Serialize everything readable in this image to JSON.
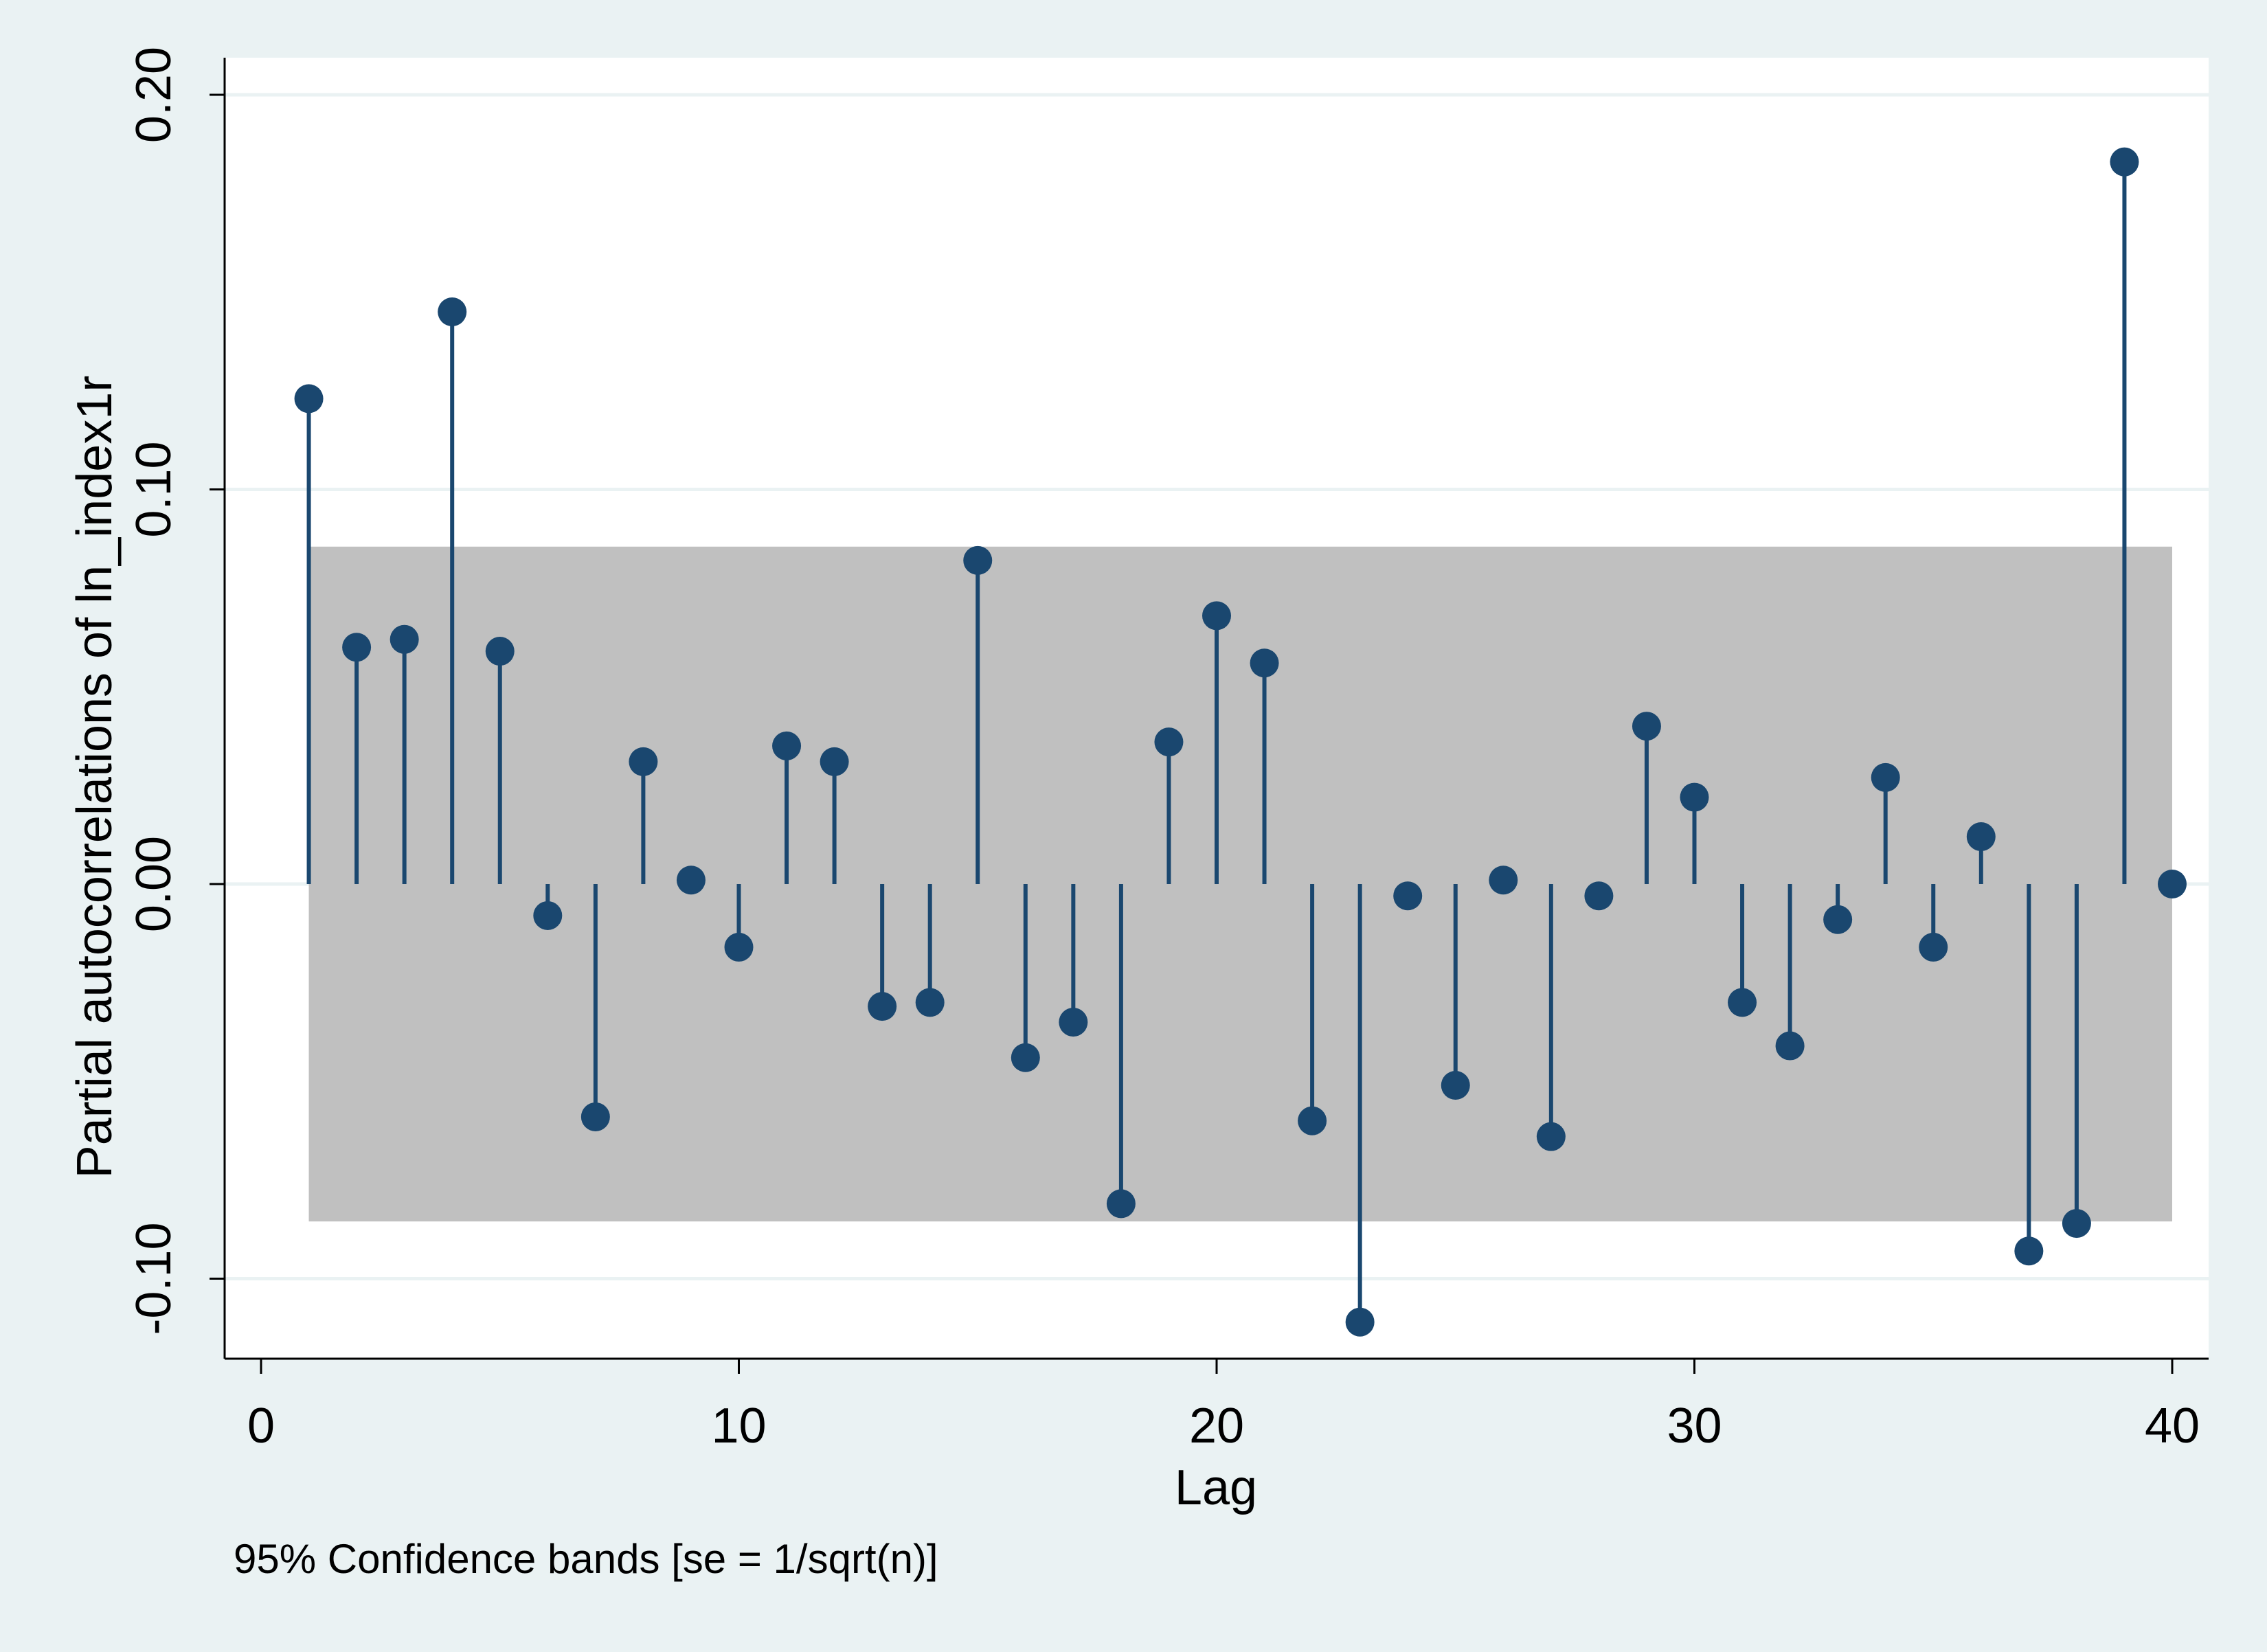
{
  "chart_data": {
    "type": "scatter",
    "subtype": "stem",
    "ylabel": "Partial autocorrelations of ln_index1r",
    "xlabel": "Lag",
    "note": "95% Confidence bands [se = 1/sqrt(n)]",
    "xlim": [
      0,
      40
    ],
    "ylim": [
      -0.12,
      0.2
    ],
    "x_ticks": [
      0,
      10,
      20,
      30,
      40
    ],
    "y_ticks": [
      -0.1,
      0.0,
      0.1,
      0.2
    ],
    "x_tick_labels": [
      "0",
      "10",
      "20",
      "30",
      "40"
    ],
    "y_tick_labels": [
      "-0.10",
      "0.00",
      "0.10",
      "0.20"
    ],
    "confidence_band": {
      "x_start": 1,
      "x_end": 40,
      "lower": -0.0855,
      "upper": 0.0855
    },
    "grid": true,
    "lags": [
      1,
      2,
      3,
      4,
      5,
      6,
      7,
      8,
      9,
      10,
      11,
      12,
      13,
      14,
      15,
      16,
      17,
      18,
      19,
      20,
      21,
      22,
      23,
      24,
      25,
      26,
      27,
      28,
      29,
      30,
      31,
      32,
      33,
      34,
      35,
      36,
      37,
      38,
      39,
      40
    ],
    "pac": [
      0.123,
      0.06,
      0.062,
      0.145,
      0.059,
      -0.008,
      -0.059,
      0.031,
      0.001,
      -0.016,
      0.035,
      0.031,
      -0.031,
      -0.03,
      0.082,
      -0.044,
      -0.035,
      -0.081,
      0.036,
      0.068,
      0.056,
      -0.06,
      -0.111,
      -0.003,
      -0.051,
      0.001,
      -0.064,
      -0.003,
      0.04,
      0.022,
      -0.03,
      -0.041,
      -0.009,
      0.027,
      -0.016,
      0.012,
      -0.093,
      -0.086,
      0.183,
      0.0
    ],
    "colors": {
      "background": "#eaf2f3",
      "plot": "#ffffff",
      "band": "#c0c0c0",
      "marker": "#1a476f",
      "grid": "#eaf2f3"
    }
  }
}
